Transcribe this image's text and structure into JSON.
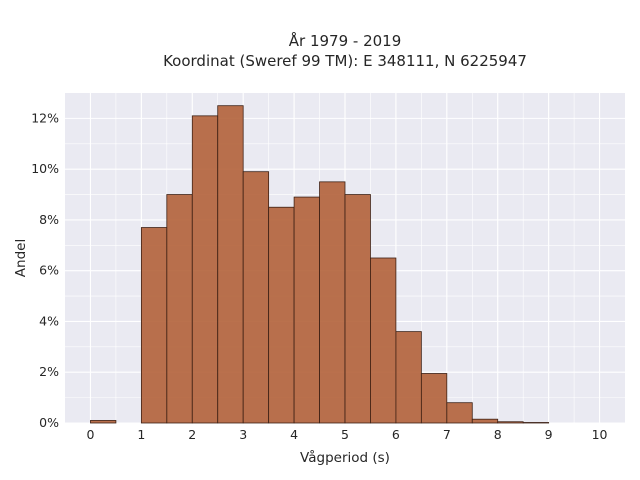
{
  "chart_data": {
    "type": "bar",
    "title": "År 1979 - 2019",
    "subtitle": "Koordinat (Sweref 99 TM): E 348111, N 6225947",
    "xlabel": "Vågperiod (s)",
    "ylabel": "Andel",
    "bin_width": 0.5,
    "bins_start": [
      0,
      0.5,
      1,
      1.5,
      2,
      2.5,
      3,
      3.5,
      4,
      4.5,
      5,
      5.5,
      6,
      6.5,
      7,
      7.5,
      8,
      8.5,
      9,
      9.5
    ],
    "values": [
      0.1,
      0,
      7.7,
      9.0,
      12.1,
      12.5,
      9.9,
      8.5,
      8.9,
      9.5,
      9.0,
      6.5,
      3.6,
      1.95,
      0.8,
      0.15,
      0.05,
      0.02,
      0,
      0
    ],
    "xticks": [
      "0",
      "1",
      "2",
      "3",
      "4",
      "5",
      "6",
      "7",
      "8",
      "9",
      "10"
    ],
    "yticks": [
      "0%",
      "2%",
      "4%",
      "6%",
      "8%",
      "10%",
      "12%"
    ],
    "xlim": [
      -0.5,
      10.5
    ],
    "ylim": [
      0,
      13.0
    ],
    "grid": true,
    "colors": {
      "bar": "#b3623a",
      "bar_edge": "#3d2014",
      "plot_bg": "#eaeaf2",
      "grid": "#ffffff"
    }
  }
}
